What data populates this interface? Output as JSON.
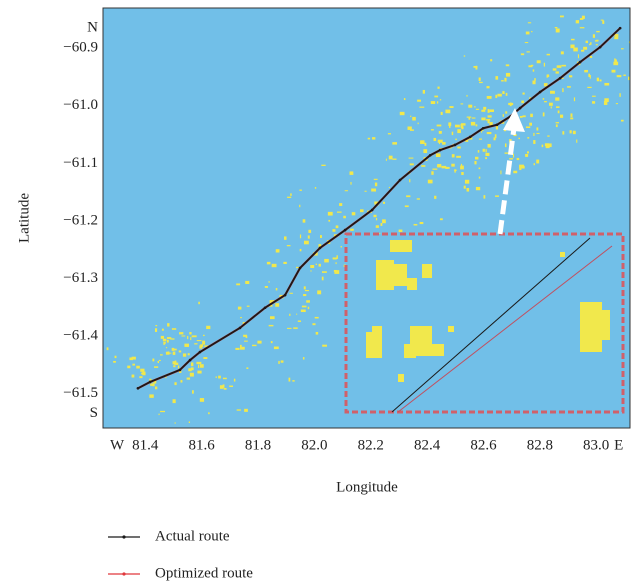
{
  "chart_data": {
    "type": "line",
    "x_label": "Longitude",
    "y_label": "Latitude",
    "x": [
      81.374,
      81.417,
      81.523,
      81.559,
      81.594,
      81.736,
      81.825,
      81.896,
      81.949,
      82.02,
      82.109,
      82.205,
      82.304,
      82.411,
      82.446,
      82.499,
      82.553,
      82.599,
      82.648,
      82.694,
      82.73,
      82.801,
      82.872,
      82.943,
      83.014,
      83.085
    ],
    "series": [
      {
        "name": "Actual route",
        "color": "#1a1a1a",
        "values": [
          -61.491,
          -61.48,
          -61.459,
          -61.442,
          -61.428,
          -61.386,
          -61.351,
          -61.329,
          -61.282,
          -61.247,
          -61.216,
          -61.181,
          -61.129,
          -61.086,
          -61.077,
          -61.068,
          -61.054,
          -61.039,
          -61.033,
          -61.019,
          -61.004,
          -60.976,
          -60.952,
          -60.924,
          -60.898,
          -60.865
        ]
      },
      {
        "name": "Optimized route",
        "color": "#e0383c",
        "values": [
          -61.491,
          -61.48,
          -61.459,
          -61.442,
          -61.428,
          -61.386,
          -61.351,
          -61.329,
          -61.282,
          -61.247,
          -61.216,
          -61.181,
          -61.129,
          -61.086,
          -61.077,
          -61.068,
          -61.054,
          -61.039,
          -61.033,
          -61.019,
          -61.004,
          -60.976,
          -60.952,
          -60.924,
          -60.898,
          -60.865
        ]
      }
    ],
    "xlim": [
      81.25,
      83.12
    ],
    "xticks": [
      {
        "value": 81.3,
        "label": "W"
      },
      81.4,
      81.6,
      81.8,
      {
        "value": 82,
        "label": "82.0"
      },
      82.2,
      82.4,
      82.6,
      82.8,
      {
        "value": 83,
        "label": "83.0"
      },
      {
        "value": 83.08,
        "label": "E"
      }
    ],
    "ylim": [
      -61.56,
      -60.83
    ],
    "yticks": [
      {
        "value": -60.865,
        "label": "N"
      },
      {
        "value": -60.9,
        "label": "−60.9"
      },
      {
        "value": -61,
        "label": "−61.0"
      },
      {
        "value": -61.1,
        "label": "−61.1"
      },
      {
        "value": -61.2,
        "label": "−61.2"
      },
      {
        "value": -61.3,
        "label": "−61.3"
      },
      {
        "value": -61.4,
        "label": "−61.4"
      },
      {
        "value": -61.5,
        "label": "−61.5"
      },
      {
        "value": -61.535,
        "label": "S"
      }
    ],
    "background": "#71bfe8",
    "ice_color": "#f1e84c"
  }
}
